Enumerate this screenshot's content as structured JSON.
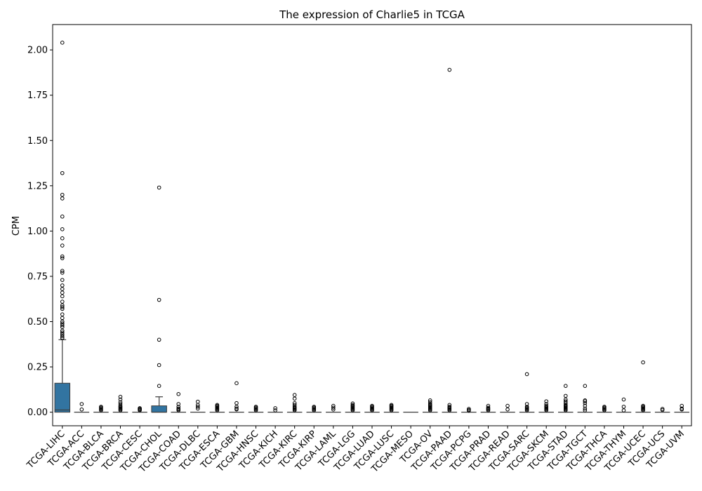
{
  "chart_data": {
    "type": "box",
    "title": "The expression of Charlie5 in TCGA",
    "xlabel": "",
    "ylabel": "CPM",
    "ylim": [
      -0.075,
      2.14
    ],
    "yticks": [
      0.0,
      0.25,
      0.5,
      0.75,
      1.0,
      1.25,
      1.5,
      1.75,
      2.0
    ],
    "ytick_labels": [
      "0.00",
      "0.25",
      "0.50",
      "0.75",
      "1.00",
      "1.25",
      "1.50",
      "1.75",
      "2.00"
    ],
    "box_color": "#3274a1",
    "categories": [
      "TCGA-LIHC",
      "TCGA-ACC",
      "TCGA-BLCA",
      "TCGA-BRCA",
      "TCGA-CESC",
      "TCGA-CHOL",
      "TCGA-COAD",
      "TCGA-DLBC",
      "TCGA-ESCA",
      "TCGA-GBM",
      "TCGA-HNSC",
      "TCGA-KICH",
      "TCGA-KIRC",
      "TCGA-KIRP",
      "TCGA-LAML",
      "TCGA-LGG",
      "TCGA-LUAD",
      "TCGA-LUSC",
      "TCGA-MESO",
      "TCGA-OV",
      "TCGA-PAAD",
      "TCGA-PCPG",
      "TCGA-PRAD",
      "TCGA-READ",
      "TCGA-SARC",
      "TCGA-SKCM",
      "TCGA-STAD",
      "TCGA-TGCT",
      "TCGA-THCA",
      "TCGA-THYM",
      "TCGA-UCEC",
      "TCGA-UCS",
      "TCGA-UVM"
    ],
    "boxes": [
      {
        "q1": 0.0,
        "median": 0.012,
        "q3": 0.16,
        "whisker_low": 0.0,
        "whisker_high": 0.4,
        "outliers": [
          2.04,
          1.32,
          1.2,
          1.18,
          1.08,
          1.01,
          0.96,
          0.92,
          0.86,
          0.85,
          0.78,
          0.77,
          0.73,
          0.7,
          0.68,
          0.66,
          0.64,
          0.61,
          0.59,
          0.58,
          0.57,
          0.54,
          0.52,
          0.5,
          0.49,
          0.48,
          0.47,
          0.45,
          0.44,
          0.43,
          0.42,
          0.41,
          0.41
        ]
      },
      {
        "q1": 0.0,
        "median": 0.0,
        "q3": 0.0,
        "whisker_low": 0.0,
        "whisker_high": 0.0,
        "outliers": [
          0.045,
          0.015
        ]
      },
      {
        "q1": 0.0,
        "median": 0.0,
        "q3": 0.0,
        "whisker_low": 0.0,
        "whisker_high": 0.0,
        "outliers": [
          0.03,
          0.025,
          0.02,
          0.015,
          0.01
        ]
      },
      {
        "q1": 0.0,
        "median": 0.0,
        "q3": 0.0,
        "whisker_low": 0.0,
        "whisker_high": 0.0,
        "outliers": [
          0.085,
          0.07,
          0.055,
          0.045,
          0.035,
          0.03,
          0.025,
          0.02,
          0.015,
          0.01
        ]
      },
      {
        "q1": 0.0,
        "median": 0.0,
        "q3": 0.0,
        "whisker_low": 0.0,
        "whisker_high": 0.0,
        "outliers": [
          0.022,
          0.018,
          0.014,
          0.01
        ]
      },
      {
        "q1": 0.0,
        "median": 0.0,
        "q3": 0.035,
        "whisker_low": 0.0,
        "whisker_high": 0.085,
        "outliers": [
          1.24,
          0.62,
          0.4,
          0.26,
          0.145
        ]
      },
      {
        "q1": 0.0,
        "median": 0.0,
        "q3": 0.0,
        "whisker_low": 0.0,
        "whisker_high": 0.0,
        "outliers": [
          0.1,
          0.045,
          0.03,
          0.02,
          0.015,
          0.01
        ]
      },
      {
        "q1": 0.0,
        "median": 0.0,
        "q3": 0.0,
        "whisker_low": 0.0,
        "whisker_high": 0.0,
        "outliers": [
          0.058,
          0.04,
          0.03,
          0.02
        ]
      },
      {
        "q1": 0.0,
        "median": 0.0,
        "q3": 0.0,
        "whisker_low": 0.0,
        "whisker_high": 0.0,
        "outliers": [
          0.04,
          0.035,
          0.03,
          0.025,
          0.02,
          0.015,
          0.01
        ]
      },
      {
        "q1": 0.0,
        "median": 0.0,
        "q3": 0.0,
        "whisker_low": 0.0,
        "whisker_high": 0.0,
        "outliers": [
          0.16,
          0.05,
          0.03,
          0.02,
          0.015
        ]
      },
      {
        "q1": 0.0,
        "median": 0.0,
        "q3": 0.0,
        "whisker_low": 0.0,
        "whisker_high": 0.0,
        "outliers": [
          0.03,
          0.025,
          0.02,
          0.015,
          0.01
        ]
      },
      {
        "q1": 0.0,
        "median": 0.0,
        "q3": 0.0,
        "whisker_low": 0.0,
        "whisker_high": 0.0,
        "outliers": [
          0.022,
          0.01
        ]
      },
      {
        "q1": 0.0,
        "median": 0.0,
        "q3": 0.0,
        "whisker_low": 0.0,
        "whisker_high": 0.0,
        "outliers": [
          0.095,
          0.075,
          0.05,
          0.04,
          0.03,
          0.025,
          0.02,
          0.015,
          0.01
        ]
      },
      {
        "q1": 0.0,
        "median": 0.0,
        "q3": 0.0,
        "whisker_low": 0.0,
        "whisker_high": 0.0,
        "outliers": [
          0.03,
          0.025,
          0.02,
          0.015,
          0.01
        ]
      },
      {
        "q1": 0.0,
        "median": 0.0,
        "q3": 0.0,
        "whisker_low": 0.0,
        "whisker_high": 0.0,
        "outliers": [
          0.035,
          0.025,
          0.015
        ]
      },
      {
        "q1": 0.0,
        "median": 0.0,
        "q3": 0.0,
        "whisker_low": 0.0,
        "whisker_high": 0.0,
        "outliers": [
          0.048,
          0.04,
          0.035,
          0.03,
          0.025,
          0.02,
          0.015,
          0.01
        ]
      },
      {
        "q1": 0.0,
        "median": 0.0,
        "q3": 0.0,
        "whisker_low": 0.0,
        "whisker_high": 0.0,
        "outliers": [
          0.035,
          0.03,
          0.025,
          0.02,
          0.015,
          0.01
        ]
      },
      {
        "q1": 0.0,
        "median": 0.0,
        "q3": 0.0,
        "whisker_low": 0.0,
        "whisker_high": 0.0,
        "outliers": [
          0.04,
          0.035,
          0.03,
          0.025,
          0.02,
          0.015,
          0.01
        ]
      },
      {
        "q1": 0.0,
        "median": 0.0,
        "q3": 0.0,
        "whisker_low": 0.0,
        "whisker_high": 0.0,
        "outliers": []
      },
      {
        "q1": 0.0,
        "median": 0.0,
        "q3": 0.0,
        "whisker_low": 0.0,
        "whisker_high": 0.0,
        "outliers": [
          0.065,
          0.055,
          0.045,
          0.04,
          0.035,
          0.03,
          0.025,
          0.02,
          0.015,
          0.01
        ]
      },
      {
        "q1": 0.0,
        "median": 0.0,
        "q3": 0.0,
        "whisker_low": 0.0,
        "whisker_high": 0.0,
        "outliers": [
          1.89,
          0.04,
          0.03,
          0.025,
          0.02,
          0.015,
          0.01
        ]
      },
      {
        "q1": 0.0,
        "median": 0.0,
        "q3": 0.0,
        "whisker_low": 0.0,
        "whisker_high": 0.0,
        "outliers": [
          0.018,
          0.012,
          0.008
        ]
      },
      {
        "q1": 0.0,
        "median": 0.0,
        "q3": 0.0,
        "whisker_low": 0.0,
        "whisker_high": 0.0,
        "outliers": [
          0.035,
          0.025,
          0.02,
          0.015,
          0.01
        ]
      },
      {
        "q1": 0.0,
        "median": 0.0,
        "q3": 0.0,
        "whisker_low": 0.0,
        "whisker_high": 0.0,
        "outliers": [
          0.035,
          0.015
        ]
      },
      {
        "q1": 0.0,
        "median": 0.0,
        "q3": 0.0,
        "whisker_low": 0.0,
        "whisker_high": 0.0,
        "outliers": [
          0.21,
          0.045,
          0.03,
          0.025,
          0.02,
          0.015,
          0.01
        ]
      },
      {
        "q1": 0.0,
        "median": 0.0,
        "q3": 0.0,
        "whisker_low": 0.0,
        "whisker_high": 0.0,
        "outliers": [
          0.06,
          0.045,
          0.035,
          0.03,
          0.025,
          0.02,
          0.015,
          0.01
        ]
      },
      {
        "q1": 0.0,
        "median": 0.0,
        "q3": 0.0,
        "whisker_low": 0.0,
        "whisker_high": 0.0,
        "outliers": [
          0.145,
          0.09,
          0.07,
          0.06,
          0.05,
          0.04,
          0.035,
          0.03,
          0.025,
          0.02,
          0.015,
          0.01
        ]
      },
      {
        "q1": 0.0,
        "median": 0.0,
        "q3": 0.0,
        "whisker_low": 0.0,
        "whisker_high": 0.0,
        "outliers": [
          0.145,
          0.065,
          0.06,
          0.05,
          0.035,
          0.02,
          0.01
        ]
      },
      {
        "q1": 0.0,
        "median": 0.0,
        "q3": 0.0,
        "whisker_low": 0.0,
        "whisker_high": 0.0,
        "outliers": [
          0.03,
          0.025,
          0.02,
          0.015,
          0.01
        ]
      },
      {
        "q1": 0.0,
        "median": 0.0,
        "q3": 0.0,
        "whisker_low": 0.0,
        "whisker_high": 0.0,
        "outliers": [
          0.07,
          0.03,
          0.01
        ]
      },
      {
        "q1": 0.0,
        "median": 0.0,
        "q3": 0.0,
        "whisker_low": 0.0,
        "whisker_high": 0.0,
        "outliers": [
          0.275,
          0.035,
          0.03,
          0.025,
          0.02,
          0.015,
          0.01
        ]
      },
      {
        "q1": 0.0,
        "median": 0.0,
        "q3": 0.0,
        "whisker_low": 0.0,
        "whisker_high": 0.0,
        "outliers": [
          0.018,
          0.012
        ]
      },
      {
        "q1": 0.0,
        "median": 0.0,
        "q3": 0.0,
        "whisker_low": 0.0,
        "whisker_high": 0.0,
        "outliers": [
          0.035,
          0.02,
          0.015
        ]
      }
    ],
    "grid": false,
    "legend": "none"
  }
}
